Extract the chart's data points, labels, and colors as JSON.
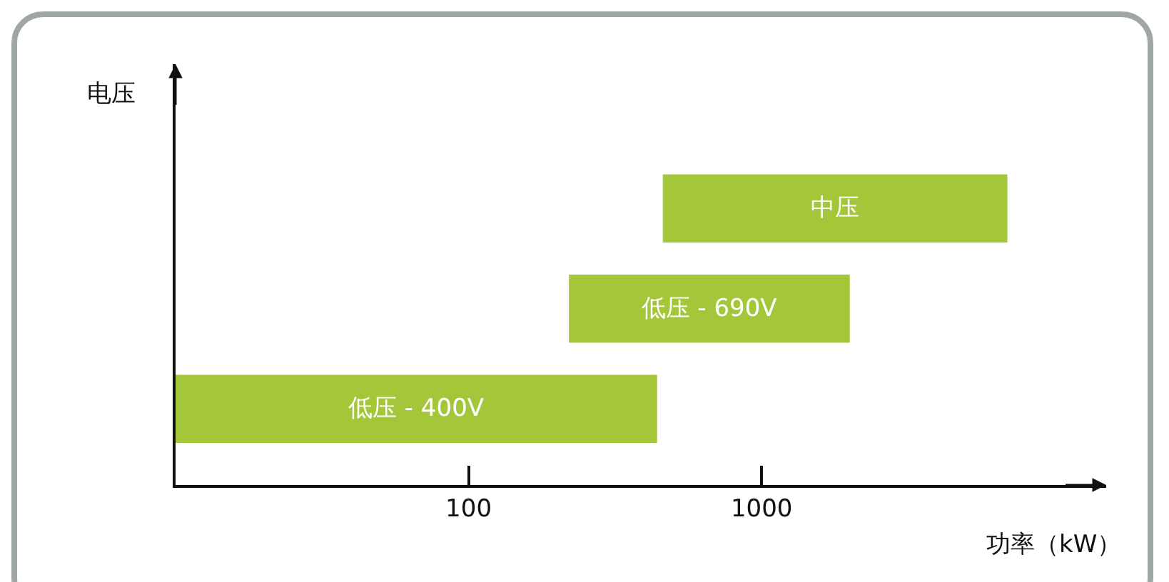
{
  "chart_data": {
    "type": "bar",
    "orientation": "horizontal",
    "log": "x",
    "categories": [
      "中压",
      "低压 - 690V",
      "低压 - 400V"
    ],
    "base": [
      460,
      220,
      10
    ],
    "values": [
      6440,
      1780,
      430
    ],
    "color": "#a4c639",
    "xlim": [
      10,
      15000
    ],
    "xticks": [
      100,
      1000
    ],
    "xlabel": "功率（kW）",
    "ylabel": "电压",
    "grid": false,
    "legend": false
  }
}
